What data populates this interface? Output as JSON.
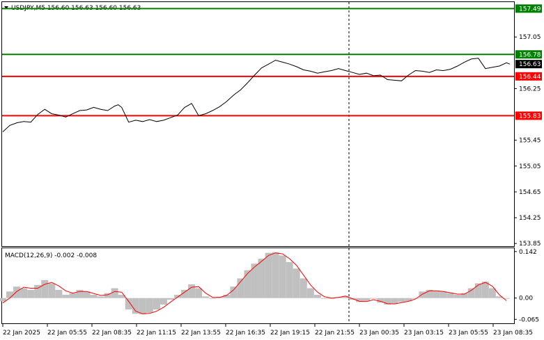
{
  "window": {
    "symbol_line": "USDJPY,M5  156.60 156.63 156.60 156.63",
    "menu_arrow_icon": "triangle-down-icon"
  },
  "colors": {
    "background": "#ffffff",
    "price_line": "#000000",
    "resistance_line": "#008000",
    "support_line": "#ff0000",
    "histogram": "#c0c0c0",
    "signal_line": "#ff0000",
    "current_price_tag": "#000000",
    "vertical_marker": "#000000"
  },
  "chart_data": [
    {
      "type": "line",
      "name": "price",
      "ylim": [
        153.82,
        157.58
      ],
      "yticks": [
        "157.05",
        "156.25",
        "155.45",
        "155.05",
        "154.65",
        "154.25",
        "153.85"
      ],
      "price_labels": [
        {
          "text": "157.49",
          "value": 157.49,
          "kind": "resistance"
        },
        {
          "text": "156.78",
          "value": 156.78,
          "kind": "resistance"
        },
        {
          "text": "156.63",
          "value": 156.63,
          "kind": "current"
        },
        {
          "text": "156.44",
          "value": 156.44,
          "kind": "support"
        },
        {
          "text": "155.83",
          "value": 155.83,
          "kind": "support"
        }
      ],
      "levels": [
        {
          "value": 157.49,
          "kind": "resistance"
        },
        {
          "value": 156.78,
          "kind": "resistance"
        },
        {
          "value": 156.44,
          "kind": "support"
        },
        {
          "value": 155.83,
          "kind": "support"
        }
      ],
      "series": [
        {
          "x": [
            0,
            10,
            20,
            30,
            40,
            50,
            60,
            70,
            80,
            90,
            100,
            110,
            120,
            130,
            140,
            150,
            160,
            165,
            170,
            180,
            190,
            200,
            210,
            220,
            230,
            240,
            250,
            260,
            270,
            280,
            290,
            300,
            310,
            320,
            330,
            340,
            350,
            360,
            370,
            380,
            390,
            400,
            410,
            420,
            430,
            440,
            450,
            460,
            470,
            480,
            490,
            500,
            510,
            520,
            530,
            540,
            550,
            560,
            570,
            580,
            590,
            600,
            610,
            620,
            630,
            640,
            650,
            660,
            670,
            680,
            690,
            700,
            710,
            720,
            725
          ],
          "values": [
            155.58,
            155.68,
            155.72,
            155.74,
            155.73,
            155.85,
            155.93,
            155.86,
            155.84,
            155.81,
            155.86,
            155.91,
            155.92,
            155.96,
            155.93,
            155.91,
            155.98,
            156.0,
            155.96,
            155.73,
            155.76,
            155.74,
            155.77,
            155.74,
            155.76,
            155.8,
            155.84,
            155.96,
            156.02,
            155.83,
            155.86,
            155.91,
            155.97,
            156.05,
            156.15,
            156.23,
            156.34,
            156.46,
            156.57,
            156.63,
            156.69,
            156.66,
            156.63,
            156.59,
            156.54,
            156.52,
            156.49,
            156.51,
            156.53,
            156.56,
            156.53,
            156.5,
            156.47,
            156.49,
            156.45,
            156.46,
            156.39,
            156.38,
            156.37,
            156.46,
            156.53,
            156.52,
            156.5,
            156.54,
            156.53,
            156.55,
            156.6,
            156.66,
            156.71,
            156.72,
            156.56,
            156.58,
            156.6,
            156.65,
            156.63
          ]
        }
      ]
    },
    {
      "type": "bar",
      "name": "macd",
      "title": "MACD(12,26,9) -0.002 -0.008",
      "ylim": [
        -0.075,
        0.15
      ],
      "yticks": [
        "0.142",
        "0.00",
        "-0.065"
      ],
      "series": [
        {
          "name": "histogram",
          "x": [
            0,
            10,
            20,
            30,
            40,
            50,
            60,
            70,
            80,
            90,
            100,
            110,
            120,
            130,
            140,
            150,
            160,
            170,
            180,
            190,
            200,
            210,
            220,
            230,
            240,
            250,
            260,
            270,
            280,
            290,
            300,
            310,
            320,
            330,
            340,
            350,
            360,
            370,
            380,
            390,
            400,
            410,
            420,
            430,
            440,
            450,
            460,
            470,
            480,
            490,
            500,
            510,
            520,
            530,
            540,
            550,
            560,
            570,
            580,
            590,
            600,
            610,
            620,
            630,
            640,
            650,
            660,
            670,
            680,
            690,
            700,
            710,
            720
          ],
          "values": [
            -0.01,
            0.02,
            0.035,
            0.03,
            0.025,
            0.04,
            0.055,
            0.045,
            0.025,
            0.01,
            0.015,
            0.025,
            0.02,
            0.01,
            0.005,
            0.015,
            0.03,
            0.01,
            -0.035,
            -0.048,
            -0.05,
            -0.045,
            -0.035,
            -0.02,
            -0.005,
            0.01,
            0.025,
            0.042,
            0.03,
            0.005,
            -0.002,
            0.004,
            0.01,
            0.035,
            0.06,
            0.085,
            0.105,
            0.12,
            0.138,
            0.14,
            0.13,
            0.11,
            0.09,
            0.06,
            0.03,
            0.01,
            0.0,
            -0.002,
            0.003,
            0.006,
            -0.005,
            -0.012,
            -0.01,
            -0.002,
            -0.014,
            -0.02,
            -0.018,
            -0.012,
            -0.01,
            0.0,
            0.02,
            0.025,
            0.022,
            0.02,
            0.015,
            0.01,
            0.015,
            0.03,
            0.045,
            0.05,
            0.03,
            0.005,
            -0.002
          ]
        },
        {
          "name": "signal",
          "x": [
            0,
            10,
            20,
            30,
            40,
            50,
            60,
            70,
            80,
            90,
            100,
            110,
            120,
            130,
            140,
            150,
            160,
            170,
            180,
            190,
            200,
            210,
            220,
            230,
            240,
            250,
            260,
            270,
            280,
            290,
            300,
            310,
            320,
            330,
            340,
            350,
            360,
            370,
            380,
            390,
            400,
            410,
            420,
            430,
            440,
            450,
            460,
            470,
            480,
            490,
            500,
            510,
            520,
            530,
            540,
            550,
            560,
            570,
            580,
            590,
            600,
            610,
            620,
            630,
            640,
            650,
            660,
            670,
            680,
            690,
            700,
            710,
            720
          ],
          "values": [
            -0.015,
            0.0,
            0.02,
            0.033,
            0.03,
            0.03,
            0.042,
            0.048,
            0.037,
            0.022,
            0.015,
            0.02,
            0.02,
            0.014,
            0.008,
            0.01,
            0.02,
            0.018,
            -0.01,
            -0.04,
            -0.048,
            -0.047,
            -0.04,
            -0.028,
            -0.012,
            0.003,
            0.018,
            0.033,
            0.035,
            0.015,
            0.002,
            0.002,
            0.008,
            0.025,
            0.05,
            0.075,
            0.095,
            0.112,
            0.13,
            0.138,
            0.135,
            0.12,
            0.1,
            0.07,
            0.04,
            0.018,
            0.004,
            0.0,
            0.002,
            0.006,
            -0.002,
            -0.01,
            -0.011,
            -0.005,
            -0.01,
            -0.017,
            -0.018,
            -0.014,
            -0.01,
            -0.003,
            0.012,
            0.022,
            0.022,
            0.02,
            0.016,
            0.012,
            0.012,
            0.024,
            0.04,
            0.048,
            0.036,
            0.01,
            -0.008
          ]
        }
      ]
    }
  ],
  "x_axis": {
    "labels": [
      "22 Jan 2025",
      "22 Jan 05:55",
      "22 Jan 08:35",
      "22 Jan 11:15",
      "22 Jan 13:55",
      "22 Jan 16:35",
      "22 Jan 19:15",
      "22 Jan 21:55",
      "23 Jan 00:35",
      "23 Jan 03:15",
      "23 Jan 05:55",
      "23 Jan 08:35"
    ]
  }
}
